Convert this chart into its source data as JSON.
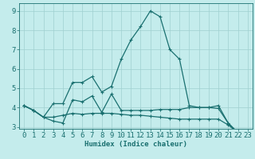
{
  "title": "",
  "xlabel": "Humidex (Indice chaleur)",
  "ylabel": "",
  "background_color": "#c4ecec",
  "grid_color": "#a0d0d0",
  "line_color": "#1a7070",
  "x_values": [
    0,
    1,
    2,
    3,
    4,
    5,
    6,
    7,
    8,
    9,
    10,
    11,
    12,
    13,
    14,
    15,
    16,
    17,
    18,
    19,
    20,
    21,
    22,
    23
  ],
  "series": [
    [
      4.1,
      3.85,
      3.5,
      4.2,
      4.2,
      5.3,
      5.3,
      5.6,
      4.8,
      5.1,
      6.5,
      7.5,
      8.2,
      9.0,
      8.7,
      7.0,
      6.5,
      4.1,
      4.0,
      4.0,
      3.95,
      3.2,
      2.7,
      2.7
    ],
    [
      4.1,
      3.85,
      3.5,
      3.3,
      3.2,
      4.4,
      4.3,
      4.6,
      3.75,
      4.7,
      3.85,
      3.85,
      3.85,
      3.85,
      3.9,
      3.9,
      3.9,
      4.0,
      4.0,
      4.0,
      4.1,
      3.2,
      2.7,
      2.7
    ],
    [
      4.1,
      3.85,
      3.5,
      3.5,
      3.6,
      3.7,
      3.65,
      3.7,
      3.7,
      3.7,
      3.65,
      3.6,
      3.6,
      3.55,
      3.5,
      3.45,
      3.4,
      3.4,
      3.4,
      3.4,
      3.4,
      3.1,
      2.7,
      2.7
    ]
  ],
  "ylim": [
    2.9,
    9.4
  ],
  "yticks": [
    3,
    4,
    5,
    6,
    7,
    8,
    9
  ],
  "xticks": [
    0,
    1,
    2,
    3,
    4,
    5,
    6,
    7,
    8,
    9,
    10,
    11,
    12,
    13,
    14,
    15,
    16,
    17,
    18,
    19,
    20,
    21,
    22,
    23
  ],
  "marker": "+",
  "marker_size": 3.5,
  "linewidth": 0.9,
  "font_size": 6.5
}
